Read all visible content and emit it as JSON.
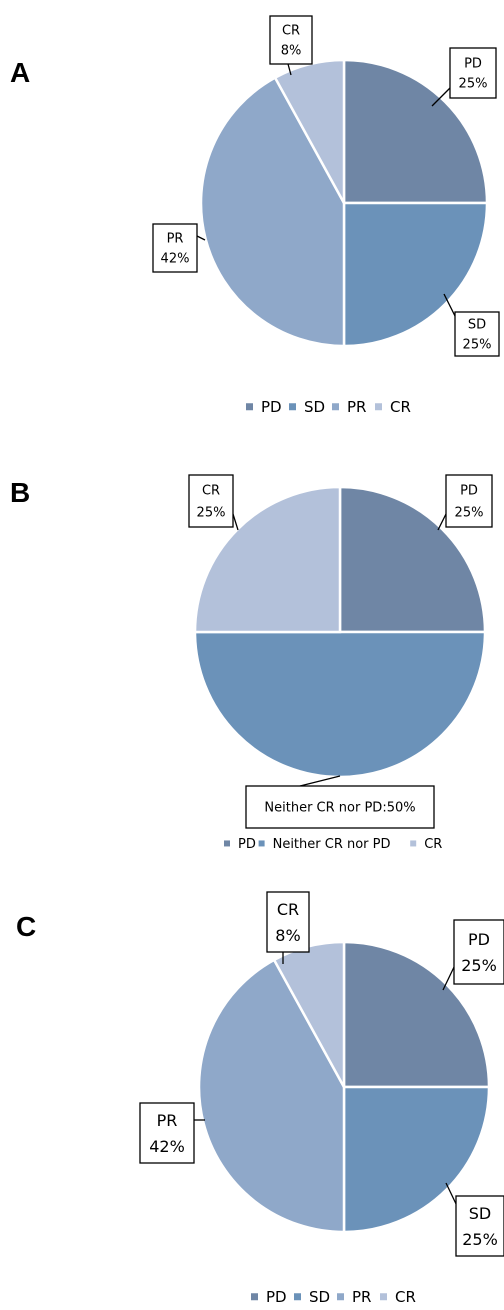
{
  "colors": {
    "PD": "#6f86a5",
    "SD": "#6b92b9",
    "Neither CR nor PD": "#6b92b9",
    "PR": "#8fa8c9",
    "CR": "#b3c1da"
  },
  "chart_data": [
    {
      "type": "pie",
      "panel": "A",
      "categories": [
        "PD",
        "SD",
        "PR",
        "CR"
      ],
      "values": [
        25,
        25,
        42,
        8
      ],
      "labels": [
        {
          "category": "PD",
          "lines": [
            "PD",
            "25%"
          ]
        },
        {
          "category": "SD",
          "lines": [
            "SD",
            "25%"
          ]
        },
        {
          "category": "PR",
          "lines": [
            "PR",
            "42%"
          ]
        },
        {
          "category": "CR",
          "lines": [
            "CR",
            "8%"
          ]
        }
      ],
      "legend": [
        "PD",
        "SD",
        "PR",
        "CR"
      ],
      "legend_position": "bottom"
    },
    {
      "type": "pie",
      "panel": "B",
      "categories": [
        "PD",
        "Neither CR nor PD",
        "CR"
      ],
      "values": [
        25,
        50,
        25
      ],
      "labels": [
        {
          "category": "PD",
          "lines": [
            "PD",
            "25%"
          ]
        },
        {
          "category": "Neither CR nor PD",
          "lines": [
            "Neither CR nor PD:50%"
          ]
        },
        {
          "category": "CR",
          "lines": [
            "CR",
            "25%"
          ]
        }
      ],
      "legend": [
        "PD",
        "Neither CR nor PD",
        "CR"
      ],
      "legend_position": "bottom"
    },
    {
      "type": "pie",
      "panel": "C",
      "categories": [
        "PD",
        "SD",
        "PR",
        "CR"
      ],
      "values": [
        25,
        25,
        42,
        8
      ],
      "labels": [
        {
          "category": "PD",
          "lines": [
            "PD",
            "25%"
          ]
        },
        {
          "category": "SD",
          "lines": [
            "SD",
            "25%"
          ]
        },
        {
          "category": "PR",
          "lines": [
            "PR",
            "42%"
          ]
        },
        {
          "category": "CR",
          "lines": [
            "CR",
            "8%"
          ]
        }
      ],
      "legend": [
        "PD",
        "SD",
        "PR",
        "CR"
      ],
      "legend_position": "bottom"
    }
  ]
}
